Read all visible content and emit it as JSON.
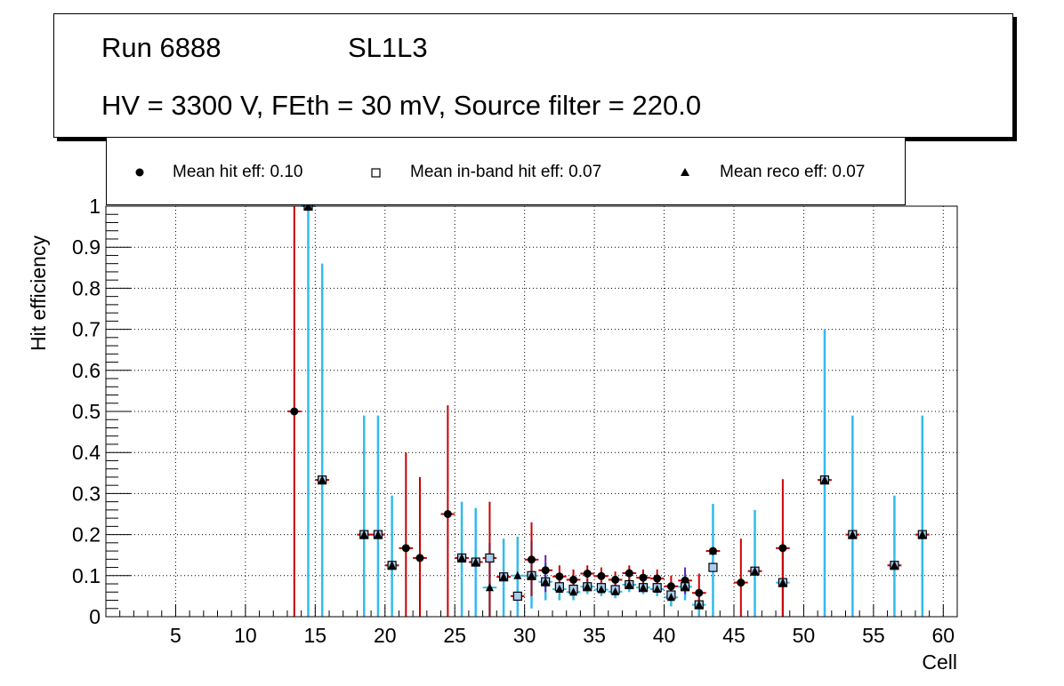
{
  "header": {
    "run": "Run 6888",
    "layer": "SL1L3",
    "conditions": "HV = 3300 V, FEth = 30 mV, Source filter = 220.0"
  },
  "legend": {
    "hit": "Mean hit  eff: 0.10",
    "inband": "Mean in-band hit eff: 0.07",
    "reco": "Mean reco eff: 0.07"
  },
  "colors": {
    "hit_error": "#cc0000",
    "reco_error": "#33bbee",
    "inband_fill": "#aaccee",
    "overlap_error": "#6622aa",
    "marker": "#000000"
  },
  "chart_data": {
    "type": "scatter",
    "xlabel": "Cell",
    "ylabel": "Hit efficiency",
    "xlim": [
      0,
      61
    ],
    "ylim": [
      0,
      1
    ],
    "xticks": [
      5,
      10,
      15,
      20,
      25,
      30,
      35,
      40,
      45,
      50,
      55,
      60
    ],
    "yticks": [
      0,
      0.1,
      0.2,
      0.3,
      0.4,
      0.5,
      0.6,
      0.7,
      0.8,
      0.9,
      1
    ],
    "ytick_labels": [
      "0",
      "0.1",
      "0.2",
      "0.3",
      "0.4",
      "0.5",
      "0.6",
      "0.7",
      "0.8",
      "0.9",
      "1"
    ],
    "grid": true,
    "series": [
      {
        "name": "Mean hit  eff: 0.10",
        "marker": "circle",
        "points": [
          {
            "x": 13.5,
            "y": 0.5,
            "lo": 0.0,
            "hi": 1.0
          },
          {
            "x": 15.5,
            "y": 0.333
          },
          {
            "x": 18.5,
            "y": 0.2
          },
          {
            "x": 19.5,
            "y": 0.2
          },
          {
            "x": 20.5,
            "y": 0.125
          },
          {
            "x": 21.5,
            "y": 0.167,
            "lo": 0.0,
            "hi": 0.4
          },
          {
            "x": 22.5,
            "y": 0.143,
            "lo": 0.0,
            "hi": 0.34
          },
          {
            "x": 24.5,
            "y": 0.25,
            "lo": 0.0,
            "hi": 0.515
          },
          {
            "x": 25.5,
            "y": 0.143
          },
          {
            "x": 26.5,
            "y": 0.133
          },
          {
            "x": 27.5,
            "y": 0.143,
            "lo": 0.0,
            "hi": 0.28
          },
          {
            "x": 28.5,
            "y": 0.097
          },
          {
            "x": 29.5,
            "y": 0.05
          },
          {
            "x": 30.5,
            "y": 0.139,
            "lo": 0.05,
            "hi": 0.23
          },
          {
            "x": 31.5,
            "y": 0.113,
            "lo": 0.06,
            "hi": 0.15
          },
          {
            "x": 32.5,
            "y": 0.098,
            "lo": 0.07,
            "hi": 0.125
          },
          {
            "x": 33.5,
            "y": 0.09,
            "lo": 0.065,
            "hi": 0.115
          },
          {
            "x": 34.5,
            "y": 0.105,
            "lo": 0.085,
            "hi": 0.125
          },
          {
            "x": 35.5,
            "y": 0.099,
            "lo": 0.08,
            "hi": 0.12
          },
          {
            "x": 36.5,
            "y": 0.09,
            "lo": 0.07,
            "hi": 0.11
          },
          {
            "x": 37.5,
            "y": 0.106,
            "lo": 0.085,
            "hi": 0.125
          },
          {
            "x": 38.5,
            "y": 0.095,
            "lo": 0.075,
            "hi": 0.115
          },
          {
            "x": 39.5,
            "y": 0.093,
            "lo": 0.07,
            "hi": 0.115
          },
          {
            "x": 40.5,
            "y": 0.074,
            "lo": 0.05,
            "hi": 0.1
          },
          {
            "x": 41.5,
            "y": 0.088,
            "lo": 0.055,
            "hi": 0.12
          },
          {
            "x": 42.5,
            "y": 0.058,
            "lo": 0.02,
            "hi": 0.105
          },
          {
            "x": 43.5,
            "y": 0.16
          },
          {
            "x": 45.5,
            "y": 0.083,
            "lo": 0.0,
            "hi": 0.19
          },
          {
            "x": 46.5,
            "y": 0.111
          },
          {
            "x": 48.5,
            "y": 0.167,
            "lo": 0.0,
            "hi": 0.335
          },
          {
            "x": 51.5,
            "y": 0.333
          },
          {
            "x": 53.5,
            "y": 0.2
          },
          {
            "x": 56.5,
            "y": 0.125
          },
          {
            "x": 58.5,
            "y": 0.2
          }
        ]
      },
      {
        "name": "Mean in-band hit eff: 0.07",
        "marker": "open-square",
        "points": [
          {
            "x": 14.5,
            "y": 1.0
          },
          {
            "x": 15.5,
            "y": 0.333
          },
          {
            "x": 18.5,
            "y": 0.2
          },
          {
            "x": 19.5,
            "y": 0.2
          },
          {
            "x": 20.5,
            "y": 0.125
          },
          {
            "x": 25.5,
            "y": 0.143
          },
          {
            "x": 26.5,
            "y": 0.133
          },
          {
            "x": 27.5,
            "y": 0.143
          },
          {
            "x": 28.5,
            "y": 0.097
          },
          {
            "x": 29.5,
            "y": 0.05
          },
          {
            "x": 30.5,
            "y": 0.1
          },
          {
            "x": 31.5,
            "y": 0.085
          },
          {
            "x": 32.5,
            "y": 0.073
          },
          {
            "x": 33.5,
            "y": 0.067
          },
          {
            "x": 34.5,
            "y": 0.073
          },
          {
            "x": 35.5,
            "y": 0.071
          },
          {
            "x": 36.5,
            "y": 0.066
          },
          {
            "x": 37.5,
            "y": 0.078
          },
          {
            "x": 38.5,
            "y": 0.071
          },
          {
            "x": 39.5,
            "y": 0.071
          },
          {
            "x": 40.5,
            "y": 0.053
          },
          {
            "x": 41.5,
            "y": 0.073
          },
          {
            "x": 42.5,
            "y": 0.029
          },
          {
            "x": 43.5,
            "y": 0.12
          },
          {
            "x": 46.5,
            "y": 0.111
          },
          {
            "x": 48.5,
            "y": 0.083
          },
          {
            "x": 51.5,
            "y": 0.333
          },
          {
            "x": 53.5,
            "y": 0.2
          },
          {
            "x": 56.5,
            "y": 0.125
          },
          {
            "x": 58.5,
            "y": 0.2
          }
        ]
      },
      {
        "name": "Mean reco eff: 0.07",
        "marker": "triangle",
        "points": [
          {
            "x": 14.5,
            "y": 1.0,
            "lo": 0.0,
            "hi": 1.0
          },
          {
            "x": 15.5,
            "y": 0.333,
            "lo": 0.0,
            "hi": 0.86
          },
          {
            "x": 18.5,
            "y": 0.2,
            "lo": 0.0,
            "hi": 0.49
          },
          {
            "x": 19.5,
            "y": 0.2,
            "lo": 0.0,
            "hi": 0.49
          },
          {
            "x": 20.5,
            "y": 0.125,
            "lo": 0.0,
            "hi": 0.295
          },
          {
            "x": 25.5,
            "y": 0.143,
            "lo": 0.0,
            "hi": 0.28
          },
          {
            "x": 26.5,
            "y": 0.133,
            "lo": 0.0,
            "hi": 0.265
          },
          {
            "x": 27.5,
            "y": 0.071,
            "lo": 0.0,
            "hi": 0.18
          },
          {
            "x": 28.5,
            "y": 0.097,
            "lo": 0.0,
            "hi": 0.19
          },
          {
            "x": 29.5,
            "y": 0.1,
            "lo": 0.0,
            "hi": 0.195
          },
          {
            "x": 30.5,
            "y": 0.1,
            "lo": 0.02,
            "hi": 0.185
          },
          {
            "x": 31.5,
            "y": 0.085,
            "lo": 0.04,
            "hi": 0.13
          },
          {
            "x": 32.5,
            "y": 0.067,
            "lo": 0.04,
            "hi": 0.095
          },
          {
            "x": 33.5,
            "y": 0.06,
            "lo": 0.04,
            "hi": 0.085
          },
          {
            "x": 34.5,
            "y": 0.073,
            "lo": 0.055,
            "hi": 0.09
          },
          {
            "x": 35.5,
            "y": 0.066,
            "lo": 0.05,
            "hi": 0.085
          },
          {
            "x": 36.5,
            "y": 0.061,
            "lo": 0.045,
            "hi": 0.08
          },
          {
            "x": 37.5,
            "y": 0.078,
            "lo": 0.06,
            "hi": 0.095
          },
          {
            "x": 38.5,
            "y": 0.071,
            "lo": 0.055,
            "hi": 0.09
          },
          {
            "x": 39.5,
            "y": 0.067,
            "lo": 0.05,
            "hi": 0.09
          },
          {
            "x": 40.5,
            "y": 0.047,
            "lo": 0.025,
            "hi": 0.07
          },
          {
            "x": 41.5,
            "y": 0.073,
            "lo": 0.04,
            "hi": 0.105
          },
          {
            "x": 42.5,
            "y": 0.029,
            "lo": 0.0,
            "hi": 0.07
          },
          {
            "x": 43.5,
            "y": 0.16,
            "lo": 0.0,
            "hi": 0.275
          },
          {
            "x": 46.5,
            "y": 0.111,
            "lo": 0.0,
            "hi": 0.26
          },
          {
            "x": 48.5,
            "y": 0.083,
            "lo": 0.0,
            "hi": 0.185
          },
          {
            "x": 51.5,
            "y": 0.333,
            "lo": 0.0,
            "hi": 0.7
          },
          {
            "x": 53.5,
            "y": 0.2,
            "lo": 0.0,
            "hi": 0.49
          },
          {
            "x": 56.5,
            "y": 0.125,
            "lo": 0.0,
            "hi": 0.295
          },
          {
            "x": 58.5,
            "y": 0.2,
            "lo": 0.0,
            "hi": 0.49
          }
        ]
      }
    ]
  }
}
